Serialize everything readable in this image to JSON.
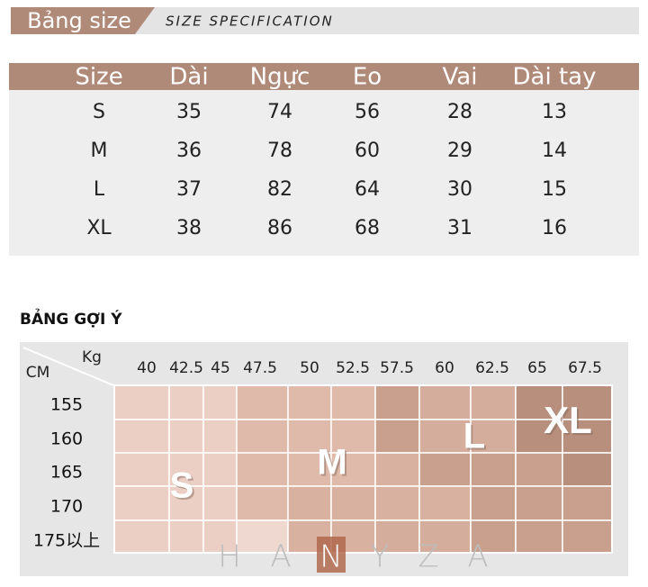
{
  "header": {
    "title": "Bảng size",
    "subtitle": "SIZE SPECIFICATION"
  },
  "size_table": {
    "columns": [
      "Size",
      "Dài",
      "Ngực",
      "Eo",
      "Vai",
      "Dài tay"
    ],
    "rows": [
      [
        "S",
        35,
        74,
        56,
        28,
        13
      ],
      [
        "M",
        36,
        78,
        60,
        29,
        14
      ],
      [
        "L",
        37,
        82,
        64,
        30,
        15
      ],
      [
        "XL",
        38,
        86,
        68,
        31,
        16
      ]
    ]
  },
  "suggestion": {
    "title": "BẢNG GỢI Ý",
    "weight_label": "Kg",
    "height_label": "CM",
    "weights": [
      40,
      42.5,
      45,
      47.5,
      50,
      52.5,
      57.5,
      60,
      62.5,
      65,
      67.5
    ],
    "heights": [
      155,
      160,
      165,
      170,
      "175以上"
    ],
    "sizes": [
      "S",
      "M",
      "L",
      "XL"
    ],
    "watermark": [
      "H",
      "A",
      "N",
      "Y",
      "Z",
      "A"
    ]
  }
}
